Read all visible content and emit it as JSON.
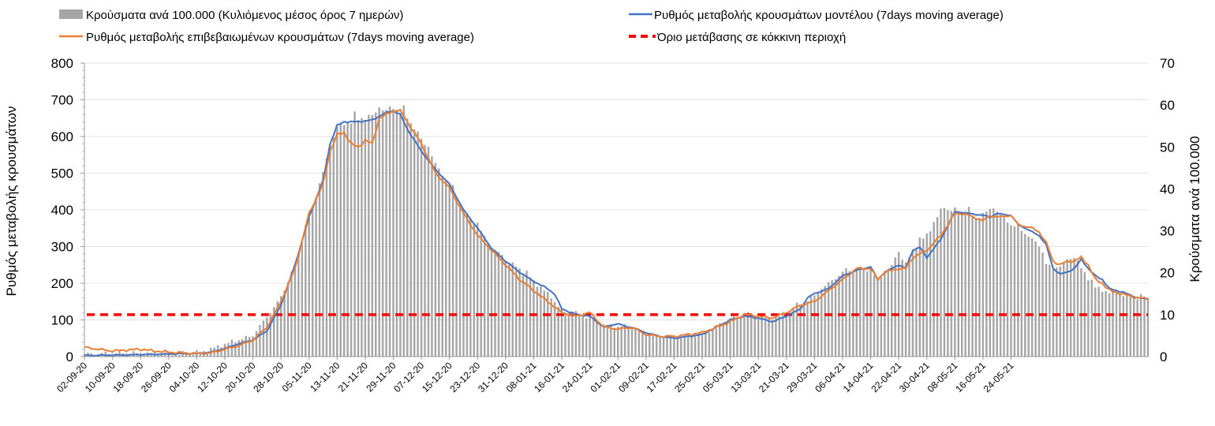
{
  "chart_data": {
    "type": "bar+line",
    "x_tick_labels": [
      "02-09-20",
      "10-09-20",
      "18-09-20",
      "26-09-20",
      "04-10-20",
      "12-10-20",
      "20-10-20",
      "28-10-20",
      "05-11-20",
      "13-11-20",
      "21-11-20",
      "29-11-20",
      "07-12-20",
      "15-12-20",
      "23-12-20",
      "31-12-20",
      "08-01-21",
      "16-01-21",
      "24-01-21",
      "01-02-21",
      "09-02-21",
      "17-02-21",
      "25-02-21",
      "05-03-21",
      "13-03-21",
      "21-03-21",
      "29-03-21",
      "06-04-21",
      "14-04-21",
      "22-04-21",
      "30-04-21",
      "08-05-21",
      "16-05-21",
      "24-05-21"
    ],
    "y_left": {
      "label": "Ρυθμός μεταβολής κρουσμάτων",
      "ticks": [
        "0",
        "100",
        "200",
        "300",
        "400",
        "500",
        "600",
        "700",
        "800"
      ],
      "min": 0,
      "max": 800
    },
    "y_right": {
      "label": "Κρούσματα ανά 100.000",
      "ticks": [
        "0",
        "10",
        "20",
        "30",
        "40",
        "50",
        "60",
        "70"
      ],
      "min": 0,
      "max": 70
    },
    "threshold": 10,
    "legend": [
      {
        "id": "bars",
        "label": "Κρούσματα ανά 100.000 (Κυλιόμενος μέσος όρος 7 ημερών)",
        "color": "#a6a6a6",
        "kind": "bar"
      },
      {
        "id": "model",
        "label": "Ρυθμός μεταβολής κρουσμάτων μοντέλου (7days moving average)",
        "color": "#4472c4",
        "kind": "line"
      },
      {
        "id": "confirmed",
        "label": "Ρυθμός μεταβολής επιβεβαιωμένων κρουσμάτων (7days moving average)",
        "color": "#ed7d31",
        "kind": "line"
      },
      {
        "id": "threshold",
        "label": "Όριο μετάβασης σε κόκκινη περιοχή",
        "color": "#ff0000",
        "kind": "dashed"
      }
    ],
    "series": [
      {
        "name": "Κρούσματα ανά 100.000",
        "axis": "right",
        "keypoints": [
          [
            0,
            0.6
          ],
          [
            10,
            0.9
          ],
          [
            20,
            0.7
          ],
          [
            28,
            0.7
          ],
          [
            34,
            1.2
          ],
          [
            40,
            3
          ],
          [
            48,
            5
          ],
          [
            56,
            14
          ],
          [
            60,
            22
          ],
          [
            64,
            33
          ],
          [
            68,
            44
          ],
          [
            72,
            55
          ],
          [
            80,
            57
          ],
          [
            88,
            59.5
          ],
          [
            92,
            57
          ],
          [
            96,
            52
          ],
          [
            100,
            46
          ],
          [
            104,
            41
          ],
          [
            108,
            35
          ],
          [
            112,
            31
          ],
          [
            116,
            26
          ],
          [
            120,
            23
          ],
          [
            124,
            21
          ],
          [
            128,
            18
          ],
          [
            132,
            15
          ],
          [
            136,
            11
          ],
          [
            140,
            10
          ],
          [
            144,
            9.5
          ],
          [
            148,
            7.5
          ],
          [
            152,
            7.2
          ],
          [
            156,
            7
          ],
          [
            160,
            5.5
          ],
          [
            164,
            4.9
          ],
          [
            168,
            4.8
          ],
          [
            172,
            5.1
          ],
          [
            176,
            5.5
          ],
          [
            180,
            7
          ],
          [
            184,
            8.7
          ],
          [
            188,
            9.9
          ],
          [
            192,
            9.6
          ],
          [
            196,
            9
          ],
          [
            200,
            10.5
          ],
          [
            204,
            12.5
          ],
          [
            208,
            14.5
          ],
          [
            212,
            17.5
          ],
          [
            216,
            20
          ],
          [
            220,
            21
          ],
          [
            224,
            20.7
          ],
          [
            226,
            18
          ],
          [
            228,
            20.5
          ],
          [
            230,
            21.3
          ],
          [
            232,
            25
          ],
          [
            234,
            22
          ],
          [
            236,
            25.5
          ],
          [
            240,
            29
          ],
          [
            244,
            34.8
          ],
          [
            248,
            35
          ],
          [
            252,
            34.2
          ],
          [
            254,
            33
          ],
          [
            256,
            34
          ],
          [
            258,
            35
          ],
          [
            260,
            34.5
          ],
          [
            262,
            33
          ],
          [
            264,
            31.5
          ],
          [
            268,
            29.5
          ],
          [
            272,
            26.5
          ],
          [
            274,
            22
          ],
          [
            276,
            21
          ],
          [
            280,
            22.5
          ],
          [
            282,
            24
          ],
          [
            284,
            21
          ],
          [
            288,
            16.5
          ],
          [
            292,
            15.3
          ],
          [
            296,
            14.8
          ],
          [
            300,
            14.2
          ],
          [
            303,
            13.8
          ]
        ]
      },
      {
        "name": "Ρυθμός μεταβολής κρουσμάτων μοντέλου (7days moving average)",
        "axis": "left",
        "keypoints": [
          [
            0,
            3
          ],
          [
            10,
            4
          ],
          [
            20,
            6
          ],
          [
            28,
            8
          ],
          [
            32,
            8
          ],
          [
            36,
            12
          ],
          [
            40,
            22
          ],
          [
            44,
            35
          ],
          [
            48,
            45
          ],
          [
            52,
            70
          ],
          [
            56,
            140
          ],
          [
            60,
            250
          ],
          [
            64,
            380
          ],
          [
            68,
            480
          ],
          [
            70,
            580
          ],
          [
            72,
            630
          ],
          [
            74,
            640
          ],
          [
            78,
            640
          ],
          [
            82,
            645
          ],
          [
            86,
            665
          ],
          [
            88,
            670
          ],
          [
            90,
            660
          ],
          [
            92,
            620
          ],
          [
            94,
            590
          ],
          [
            96,
            560
          ],
          [
            100,
            510
          ],
          [
            104,
            470
          ],
          [
            108,
            400
          ],
          [
            112,
            350
          ],
          [
            116,
            295
          ],
          [
            120,
            260
          ],
          [
            124,
            230
          ],
          [
            128,
            205
          ],
          [
            132,
            185
          ],
          [
            134,
            170
          ],
          [
            136,
            130
          ],
          [
            140,
            115
          ],
          [
            144,
            110
          ],
          [
            148,
            80
          ],
          [
            150,
            85
          ],
          [
            152,
            90
          ],
          [
            154,
            82
          ],
          [
            156,
            80
          ],
          [
            160,
            65
          ],
          [
            164,
            55
          ],
          [
            168,
            50
          ],
          [
            172,
            55
          ],
          [
            176,
            60
          ],
          [
            180,
            80
          ],
          [
            184,
            100
          ],
          [
            188,
            110
          ],
          [
            192,
            105
          ],
          [
            196,
            95
          ],
          [
            200,
            110
          ],
          [
            204,
            130
          ],
          [
            206,
            160
          ],
          [
            208,
            172
          ],
          [
            212,
            185
          ],
          [
            216,
            220
          ],
          [
            220,
            235
          ],
          [
            224,
            245
          ],
          [
            226,
            210
          ],
          [
            228,
            230
          ],
          [
            232,
            250
          ],
          [
            234,
            240
          ],
          [
            236,
            290
          ],
          [
            238,
            298
          ],
          [
            240,
            270
          ],
          [
            244,
            320
          ],
          [
            248,
            395
          ],
          [
            250,
            393
          ],
          [
            252,
            390
          ],
          [
            256,
            385
          ],
          [
            258,
            380
          ],
          [
            260,
            390
          ],
          [
            264,
            385
          ],
          [
            266,
            360
          ],
          [
            270,
            340
          ],
          [
            272,
            330
          ],
          [
            274,
            305
          ],
          [
            276,
            240
          ],
          [
            278,
            225
          ],
          [
            280,
            230
          ],
          [
            282,
            240
          ],
          [
            284,
            265
          ],
          [
            286,
            240
          ],
          [
            288,
            220
          ],
          [
            290,
            210
          ],
          [
            292,
            185
          ],
          [
            296,
            175
          ],
          [
            300,
            160
          ],
          [
            303,
            157
          ]
        ]
      },
      {
        "name": "Ρυθμός μεταβολής επιβεβαιωμένων κρουσμάτων (7days moving average)",
        "axis": "left",
        "keypoints": [
          [
            0,
            25
          ],
          [
            4,
            20
          ],
          [
            8,
            15
          ],
          [
            12,
            18
          ],
          [
            16,
            20
          ],
          [
            20,
            15
          ],
          [
            24,
            12
          ],
          [
            28,
            10
          ],
          [
            32,
            8
          ],
          [
            36,
            10
          ],
          [
            40,
            20
          ],
          [
            44,
            30
          ],
          [
            48,
            45
          ],
          [
            52,
            80
          ],
          [
            56,
            150
          ],
          [
            60,
            240
          ],
          [
            64,
            390
          ],
          [
            68,
            470
          ],
          [
            70,
            560
          ],
          [
            72,
            605
          ],
          [
            74,
            610
          ],
          [
            76,
            580
          ],
          [
            78,
            570
          ],
          [
            80,
            590
          ],
          [
            82,
            580
          ],
          [
            84,
            650
          ],
          [
            88,
            670
          ],
          [
            90,
            670
          ],
          [
            92,
            640
          ],
          [
            96,
            580
          ],
          [
            100,
            500
          ],
          [
            104,
            460
          ],
          [
            108,
            390
          ],
          [
            112,
            330
          ],
          [
            116,
            290
          ],
          [
            120,
            250
          ],
          [
            124,
            210
          ],
          [
            128,
            180
          ],
          [
            132,
            150
          ],
          [
            136,
            120
          ],
          [
            140,
            110
          ],
          [
            144,
            120
          ],
          [
            148,
            80
          ],
          [
            152,
            75
          ],
          [
            156,
            80
          ],
          [
            160,
            60
          ],
          [
            164,
            55
          ],
          [
            168,
            55
          ],
          [
            172,
            60
          ],
          [
            176,
            65
          ],
          [
            180,
            80
          ],
          [
            184,
            95
          ],
          [
            188,
            115
          ],
          [
            192,
            110
          ],
          [
            196,
            105
          ],
          [
            200,
            120
          ],
          [
            204,
            140
          ],
          [
            208,
            150
          ],
          [
            212,
            180
          ],
          [
            216,
            210
          ],
          [
            220,
            240
          ],
          [
            224,
            240
          ],
          [
            226,
            210
          ],
          [
            228,
            230
          ],
          [
            232,
            240
          ],
          [
            234,
            240
          ],
          [
            236,
            270
          ],
          [
            240,
            290
          ],
          [
            244,
            330
          ],
          [
            248,
            390
          ],
          [
            250,
            390
          ],
          [
            252,
            385
          ],
          [
            256,
            370
          ],
          [
            258,
            385
          ],
          [
            260,
            380
          ],
          [
            264,
            385
          ],
          [
            266,
            360
          ],
          [
            270,
            350
          ],
          [
            272,
            340
          ],
          [
            274,
            310
          ],
          [
            276,
            260
          ],
          [
            278,
            250
          ],
          [
            280,
            260
          ],
          [
            282,
            260
          ],
          [
            284,
            270
          ],
          [
            286,
            250
          ],
          [
            288,
            210
          ],
          [
            290,
            200
          ],
          [
            292,
            180
          ],
          [
            296,
            170
          ],
          [
            300,
            160
          ],
          [
            303,
            158
          ]
        ]
      }
    ]
  }
}
